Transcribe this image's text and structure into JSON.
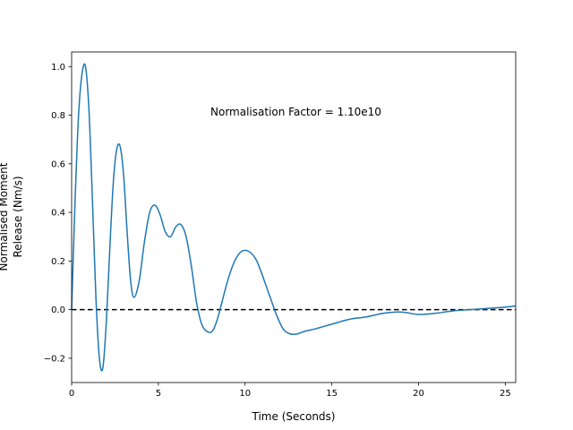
{
  "chart_data": {
    "type": "line",
    "title": "",
    "xlabel": "Time (Seconds)",
    "ylabel_lines": [
      "Normalised Moment",
      "Release (Nm/s)"
    ],
    "xlim": [
      0,
      25.6
    ],
    "ylim": [
      -0.3,
      1.06
    ],
    "xticks": [
      0,
      5,
      10,
      15,
      20,
      25
    ],
    "yticks": [
      -0.2,
      0.0,
      0.2,
      0.4,
      0.6,
      0.8,
      1.0
    ],
    "grid": false,
    "annotation": "Normalisation Factor = 1.10e10",
    "reference_line": {
      "y": 0,
      "style": "dashed",
      "color": "#000000"
    },
    "series": [
      {
        "color": "#1f77b4",
        "x": [
          0,
          0.2,
          0.4,
          0.6,
          0.8,
          1.0,
          1.2,
          1.4,
          1.6,
          1.8,
          2.0,
          2.2,
          2.4,
          2.6,
          2.8,
          3.0,
          3.2,
          3.4,
          3.6,
          3.9,
          4.2,
          4.5,
          4.8,
          5.1,
          5.4,
          5.7,
          6.0,
          6.3,
          6.6,
          6.9,
          7.2,
          7.5,
          7.8,
          8.1,
          8.4,
          8.7,
          9.0,
          9.4,
          9.8,
          10.2,
          10.6,
          10.9,
          11.2,
          11.5,
          11.8,
          12.2,
          12.6,
          13.0,
          13.4,
          14.0,
          15.0,
          16.0,
          17.0,
          18.0,
          19.0,
          20.0,
          21.0,
          22.0,
          23.0,
          24.0,
          25.0,
          25.6
        ],
        "y": [
          0.0,
          0.45,
          0.8,
          0.97,
          1.0,
          0.82,
          0.45,
          0.05,
          -0.2,
          -0.24,
          -0.05,
          0.25,
          0.52,
          0.66,
          0.67,
          0.55,
          0.32,
          0.12,
          0.05,
          0.12,
          0.28,
          0.4,
          0.43,
          0.39,
          0.32,
          0.3,
          0.34,
          0.35,
          0.3,
          0.18,
          0.03,
          -0.06,
          -0.09,
          -0.09,
          -0.04,
          0.04,
          0.12,
          0.2,
          0.24,
          0.24,
          0.21,
          0.16,
          0.1,
          0.04,
          -0.02,
          -0.08,
          -0.1,
          -0.1,
          -0.09,
          -0.08,
          -0.06,
          -0.04,
          -0.03,
          -0.015,
          -0.01,
          -0.02,
          -0.015,
          -0.005,
          0.0,
          0.005,
          0.01,
          0.015
        ]
      }
    ]
  }
}
